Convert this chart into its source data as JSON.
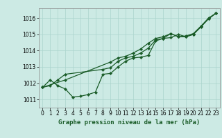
{
  "title": "Graphe pression niveau de la mer (hPa)",
  "bg_color": "#cceae4",
  "grid_color": "#aad4cc",
  "line_color": "#1a5c28",
  "marker": "D",
  "marker_size": 2.2,
  "linewidth": 0.9,
  "xlim": [
    -0.5,
    23.5
  ],
  "ylim": [
    1010.5,
    1016.6
  ],
  "xticks": [
    0,
    1,
    2,
    3,
    4,
    5,
    6,
    7,
    8,
    9,
    10,
    11,
    12,
    13,
    14,
    15,
    16,
    17,
    18,
    19,
    20,
    21,
    22,
    23
  ],
  "yticks": [
    1011,
    1012,
    1013,
    1014,
    1015,
    1016
  ],
  "series1": [
    [
      0,
      1011.75
    ],
    [
      1,
      1012.2
    ],
    [
      2,
      1011.85
    ],
    [
      3,
      1011.65
    ],
    [
      4,
      1011.15
    ],
    [
      5,
      1011.2
    ],
    [
      6,
      1011.3
    ],
    [
      7,
      1011.45
    ],
    [
      8,
      1012.55
    ],
    [
      9,
      1012.6
    ],
    [
      10,
      1013.0
    ],
    [
      11,
      1013.35
    ],
    [
      12,
      1013.55
    ],
    [
      13,
      1013.6
    ],
    [
      14,
      1013.7
    ],
    [
      15,
      1014.6
    ],
    [
      16,
      1014.75
    ],
    [
      17,
      1014.8
    ],
    [
      18,
      1015.0
    ],
    [
      19,
      1014.85
    ],
    [
      20,
      1015.0
    ],
    [
      21,
      1015.5
    ],
    [
      22,
      1015.95
    ],
    [
      23,
      1016.3
    ]
  ],
  "series2": [
    [
      0,
      1011.75
    ],
    [
      1,
      1011.85
    ],
    [
      2,
      1012.2
    ],
    [
      3,
      1012.55
    ],
    [
      8,
      1012.85
    ],
    [
      9,
      1012.95
    ],
    [
      10,
      1013.35
    ],
    [
      11,
      1013.55
    ],
    [
      12,
      1013.65
    ],
    [
      13,
      1013.85
    ],
    [
      14,
      1014.15
    ],
    [
      15,
      1014.65
    ],
    [
      16,
      1014.75
    ],
    [
      17,
      1015.05
    ],
    [
      18,
      1014.85
    ],
    [
      19,
      1014.85
    ],
    [
      20,
      1015.0
    ],
    [
      21,
      1015.45
    ],
    [
      22,
      1015.95
    ],
    [
      23,
      1016.3
    ]
  ],
  "series3": [
    [
      0,
      1011.75
    ],
    [
      3,
      1012.2
    ],
    [
      9,
      1013.3
    ],
    [
      10,
      1013.55
    ],
    [
      11,
      1013.65
    ],
    [
      12,
      1013.85
    ],
    [
      13,
      1014.1
    ],
    [
      14,
      1014.45
    ],
    [
      15,
      1014.75
    ],
    [
      16,
      1014.85
    ],
    [
      17,
      1015.05
    ],
    [
      18,
      1014.85
    ],
    [
      19,
      1014.9
    ],
    [
      20,
      1015.05
    ],
    [
      21,
      1015.5
    ],
    [
      22,
      1016.0
    ],
    [
      23,
      1016.3
    ]
  ],
  "tick_fontsize": 5.5,
  "xlabel_fontsize": 6.5
}
